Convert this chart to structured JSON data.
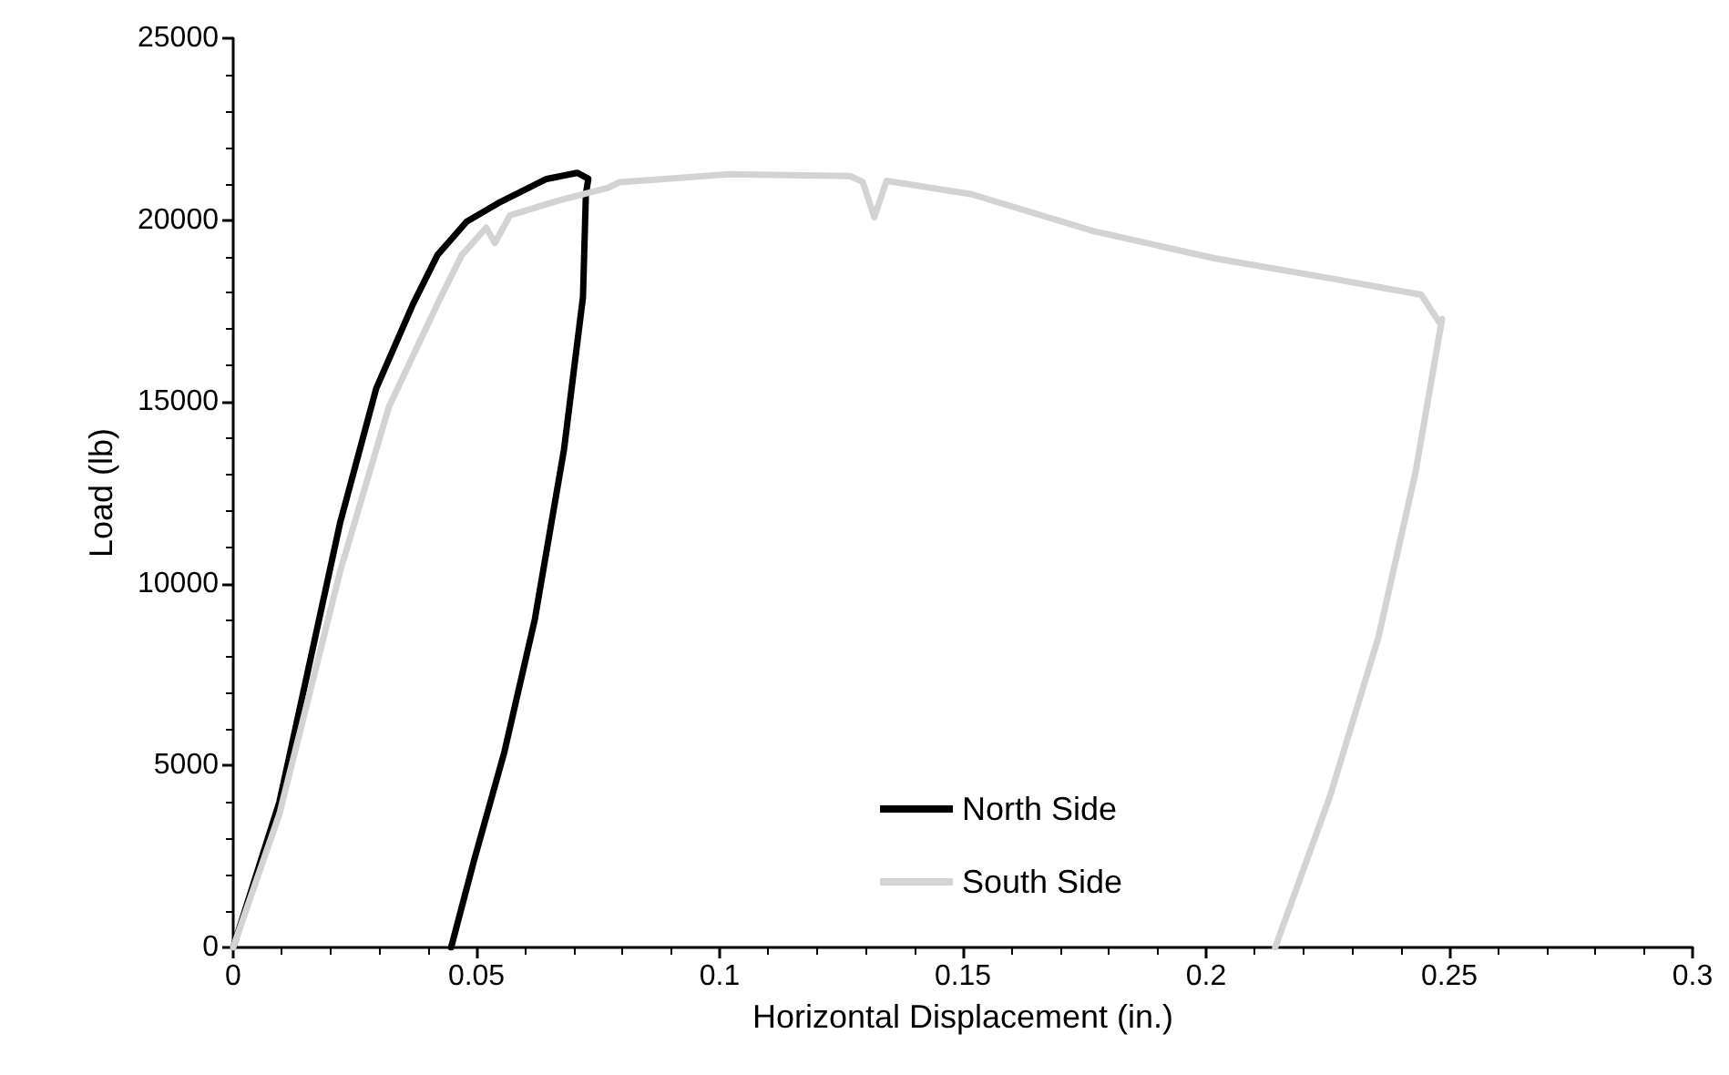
{
  "chart_data": {
    "type": "line",
    "xlabel": "Horizontal Displacement (in.)",
    "ylabel": "Load (lb)",
    "xlim": [
      0,
      0.3
    ],
    "xticks": [
      0,
      0.05,
      0.1,
      0.15,
      0.2,
      0.25,
      0.3
    ],
    "ylim": [
      0,
      25000
    ],
    "yticks": [
      0,
      5000,
      10000,
      15000,
      20000,
      25000
    ],
    "grid": false,
    "legend": "bottom",
    "marker": "none",
    "line_style": "solid",
    "series": [
      {
        "name": "North Side",
        "color": "#000000",
        "x": [
          0,
          0.0095,
          0.022,
          0.0294,
          0.037,
          0.042,
          0.048,
          0.0544,
          0.0644,
          0.0707,
          0.073,
          0.0725,
          0.0719,
          0.068,
          0.062,
          0.0557,
          0.0494,
          0.0448
        ],
        "values": [
          0,
          4000,
          11690,
          15370,
          17700,
          19040,
          19960,
          20460,
          21130,
          21300,
          21140,
          20710,
          17880,
          13690,
          9020,
          5350,
          2340,
          0
        ]
      },
      {
        "name": "South Side",
        "color": "#d3d3d3",
        "x": [
          0,
          0.0095,
          0.022,
          0.032,
          0.042,
          0.047,
          0.052,
          0.0538,
          0.0569,
          0.0669,
          0.0769,
          0.0794,
          0.1019,
          0.1268,
          0.1294,
          0.1318,
          0.1343,
          0.1518,
          0.1768,
          0.2017,
          0.2267,
          0.2442,
          0.2479,
          0.2485,
          0.243,
          0.2354,
          0.2255,
          0.2142
        ],
        "values": [
          0,
          3670,
          10350,
          14860,
          17700,
          19040,
          19790,
          19370,
          20130,
          20540,
          20880,
          21040,
          21260,
          21210,
          21050,
          20080,
          21080,
          20710,
          19700,
          18950,
          18370,
          17950,
          17200,
          17280,
          13030,
          8520,
          4170,
          0
        ]
      }
    ]
  }
}
